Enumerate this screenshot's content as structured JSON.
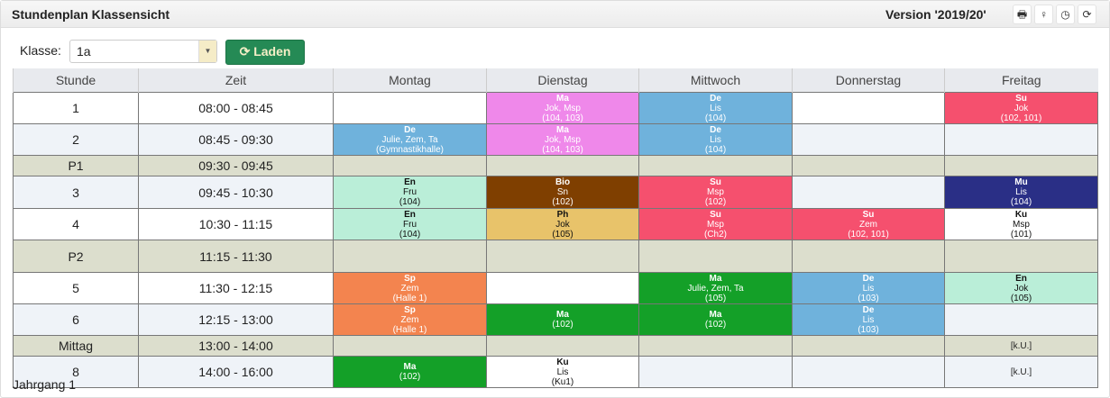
{
  "header": {
    "title": "Stundenplan Klassensicht",
    "version": "Version '2019/20'",
    "tools": [
      {
        "icon": "print-icon",
        "glyph": "🖶"
      },
      {
        "icon": "lightbulb-icon",
        "glyph": "💡"
      },
      {
        "icon": "clock-icon",
        "glyph": "◷"
      },
      {
        "icon": "refresh-icon",
        "glyph": "⟳"
      }
    ]
  },
  "filter": {
    "label": "Klasse:",
    "value": "1a",
    "load_label": "Laden",
    "load_icon": "⟳"
  },
  "colors": {
    "accent": "#258a55"
  },
  "table": {
    "columns": [
      "Stunde",
      "Zeit",
      "Montag",
      "Dienstag",
      "Mittwoch",
      "Donnerstag",
      "Freitag"
    ],
    "rows": [
      {
        "stunde": "1",
        "zeit": "08:00 - 08:45",
        "type": "lesson",
        "bg": "#ffffff",
        "cells": [
          null,
          {
            "subject": "Ma",
            "teacher": "Jok, Msp",
            "room": "(104, 103)",
            "bg": "#ef88ea",
            "fg": "#ffffff"
          },
          {
            "subject": "De",
            "teacher": "Lis",
            "room": "(104)",
            "bg": "#6fb2dc",
            "fg": "#ffffff"
          },
          null,
          {
            "subject": "Su",
            "teacher": "Jok",
            "room": "(102, 101)",
            "bg": "#f5506e",
            "fg": "#ffffff"
          }
        ]
      },
      {
        "stunde": "2",
        "zeit": "08:45 - 09:30",
        "type": "lesson",
        "bg": "#eff3f8",
        "cells": [
          {
            "subject": "De",
            "teacher": "Julie, Zem, Ta",
            "room": "(Gymnastikhalle)",
            "bg": "#6fb2dc",
            "fg": "#ffffff"
          },
          {
            "subject": "Ma",
            "teacher": "Jok, Msp",
            "room": "(104, 103)",
            "bg": "#ef88ea",
            "fg": "#ffffff"
          },
          {
            "subject": "De",
            "teacher": "Lis",
            "room": "(104)",
            "bg": "#6fb2dc",
            "fg": "#ffffff"
          },
          null,
          null
        ]
      },
      {
        "stunde": "P1",
        "zeit": "09:30 - 09:45",
        "type": "break",
        "bg": "#dcdecd",
        "cells": [
          null,
          null,
          null,
          null,
          null
        ]
      },
      {
        "stunde": "3",
        "zeit": "09:45 - 10:30",
        "type": "lesson",
        "bg": "#eff3f8",
        "cells": [
          {
            "subject": "En",
            "teacher": "Fru",
            "room": "(104)",
            "bg": "#baeed8",
            "fg": "#111111"
          },
          {
            "subject": "Bio",
            "teacher": "Sn",
            "room": "(102)",
            "bg": "#7f3f00",
            "fg": "#ffffff"
          },
          {
            "subject": "Su",
            "teacher": "Msp",
            "room": "(102)",
            "bg": "#f5506e",
            "fg": "#ffffff"
          },
          null,
          {
            "subject": "Mu",
            "teacher": "Lis",
            "room": "(104)",
            "bg": "#2a2f86",
            "fg": "#ffffff"
          }
        ]
      },
      {
        "stunde": "4",
        "zeit": "10:30 - 11:15",
        "type": "lesson",
        "bg": "#ffffff",
        "cells": [
          {
            "subject": "En",
            "teacher": "Fru",
            "room": "(104)",
            "bg": "#baeed8",
            "fg": "#111111"
          },
          {
            "subject": "Ph",
            "teacher": "Jok",
            "room": "(105)",
            "bg": "#e8c36a",
            "fg": "#111111"
          },
          {
            "subject": "Su",
            "teacher": "Msp",
            "room": "(Ch2)",
            "bg": "#f5506e",
            "fg": "#ffffff"
          },
          {
            "subject": "Su",
            "teacher": "Zem",
            "room": "(102, 101)",
            "bg": "#f5506e",
            "fg": "#ffffff"
          },
          {
            "subject": "Ku",
            "teacher": "Msp",
            "room": "(101)",
            "bg": "#ffffff",
            "fg": "#111111"
          }
        ]
      },
      {
        "stunde": "P2",
        "zeit": "11:15 - 11:30",
        "type": "break",
        "bg": "#dcdecd",
        "cells": [
          null,
          null,
          null,
          null,
          null
        ]
      },
      {
        "stunde": "5",
        "zeit": "11:30 - 12:15",
        "type": "lesson",
        "bg": "#ffffff",
        "cells": [
          {
            "subject": "Sp",
            "teacher": "Zem",
            "room": "(Halle 1)",
            "bg": "#f3844f",
            "fg": "#ffffff"
          },
          null,
          {
            "subject": "Ma",
            "teacher": "Julie, Zem, Ta",
            "room": "(105)",
            "bg": "#14a028",
            "fg": "#ffffff"
          },
          {
            "subject": "De",
            "teacher": "Lis",
            "room": "(103)",
            "bg": "#6fb2dc",
            "fg": "#ffffff"
          },
          {
            "subject": "En",
            "teacher": "Jok",
            "room": "(105)",
            "bg": "#baeed8",
            "fg": "#111111"
          }
        ]
      },
      {
        "stunde": "6",
        "zeit": "12:15 - 13:00",
        "type": "lesson",
        "bg": "#eff3f8",
        "cells": [
          {
            "subject": "Sp",
            "teacher": "Zem",
            "room": "(Halle 1)",
            "bg": "#f3844f",
            "fg": "#ffffff"
          },
          {
            "subject": "Ma",
            "teacher": "",
            "room": "(102)",
            "bg": "#14a028",
            "fg": "#ffffff"
          },
          {
            "subject": "Ma",
            "teacher": "",
            "room": "(102)",
            "bg": "#14a028",
            "fg": "#ffffff"
          },
          {
            "subject": "De",
            "teacher": "Lis",
            "room": "(103)",
            "bg": "#6fb2dc",
            "fg": "#ffffff"
          },
          null
        ]
      },
      {
        "stunde": "Mittag",
        "zeit": "13:00 - 14:00",
        "type": "break",
        "bg": "#dcdecd",
        "cells": [
          null,
          null,
          null,
          null,
          {
            "note": "[k.U.]"
          }
        ]
      },
      {
        "stunde": "8",
        "zeit": "14:00 - 16:00",
        "type": "lesson",
        "bg": "#eff3f8",
        "cells": [
          {
            "subject": "Ma",
            "teacher": "",
            "room": "(102)",
            "bg": "#14a028",
            "fg": "#ffffff"
          },
          {
            "subject": "Ku",
            "teacher": "Lis",
            "room": "(Ku1)",
            "bg": "#ffffff",
            "fg": "#111111"
          },
          null,
          null,
          {
            "note": "[k.U.]"
          }
        ]
      }
    ]
  },
  "footer": {
    "text": "Jahrgang 1"
  }
}
